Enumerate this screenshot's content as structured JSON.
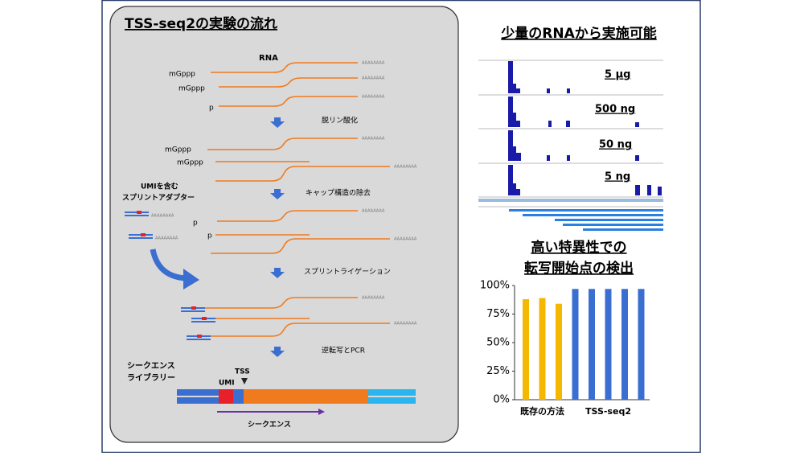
{
  "left_panel": {
    "title": "TSS-seq2の実験の流れ",
    "rna_label": "RNA",
    "poly_a": "AAAAAAAA",
    "cap": "mGppp",
    "phosphate": "p",
    "steps": [
      "脱リン酸化",
      "キャップ構造の除去",
      "スプリントライゲーション",
      "逆転写とPCR"
    ],
    "adapter_label": [
      "UMIを含む",
      "スプリントアダプター"
    ],
    "library_label": [
      "シークエンス",
      "ライブラリー"
    ],
    "umi": "UMI",
    "tss": "TSS",
    "sequence": "シークエンス"
  },
  "right_top": {
    "title": "少量のRNAから実施可能",
    "tracks": [
      "5 μg",
      "500 ng",
      "50 ng",
      "5 ng"
    ]
  },
  "chart_data": {
    "type": "bar",
    "title_lines": [
      "高い特異性での",
      "転写開始点の検出"
    ],
    "ylim": [
      0,
      100
    ],
    "yticks": [
      {
        "value": 0,
        "label": "0%"
      },
      {
        "value": 25,
        "label": "25%"
      },
      {
        "value": 50,
        "label": "50%"
      },
      {
        "value": 75,
        "label": "75%"
      },
      {
        "value": 100,
        "label": "100%"
      }
    ],
    "groups": [
      {
        "name": "既存の方法",
        "color": "#f5b800",
        "values": [
          88,
          89,
          84
        ]
      },
      {
        "name": "TSS-seq2",
        "color": "#3a6fd1",
        "values": [
          97,
          97,
          97,
          97,
          97
        ]
      }
    ]
  }
}
